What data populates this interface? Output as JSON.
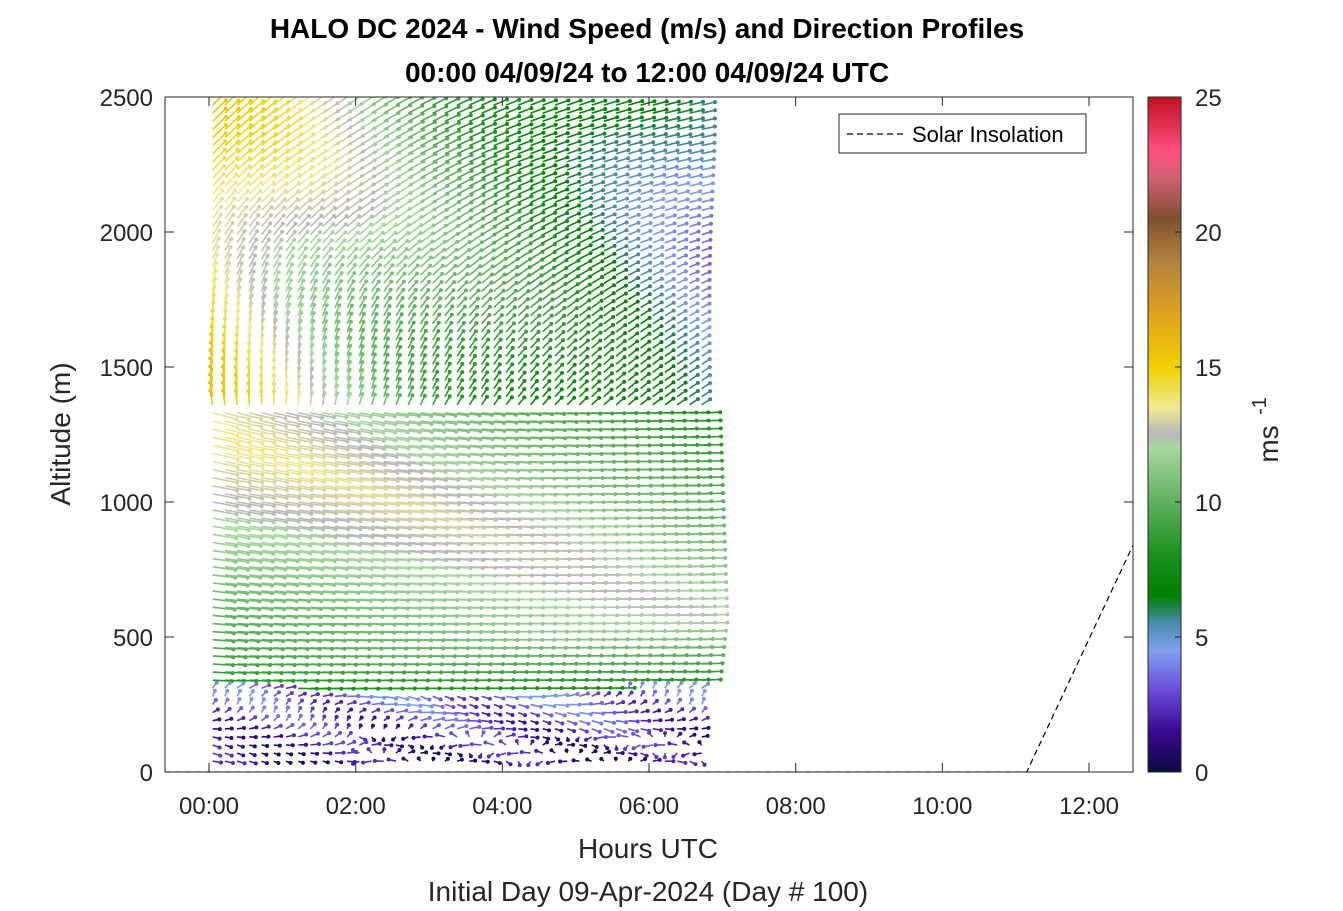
{
  "chart_data": {
    "type": "quiver",
    "title_line1": "HALO DC 2024 - Wind Speed (m/s) and Direction Profiles",
    "title_line2": "00:00 04/09/24 to 12:00 04/09/24  UTC",
    "xlabel": "Hours UTC",
    "xlabel_sub": "Initial Day 09-Apr-2024 (Day # 100)",
    "ylabel": "Altitude (m)",
    "xlim": [
      -0.6,
      12.6
    ],
    "ylim": [
      0,
      2500
    ],
    "x_ticks": [
      {
        "value": 0,
        "label": "00:00"
      },
      {
        "value": 2,
        "label": "02:00"
      },
      {
        "value": 4,
        "label": "04:00"
      },
      {
        "value": 6,
        "label": "06:00"
      },
      {
        "value": 8,
        "label": "08:00"
      },
      {
        "value": 10,
        "label": "10:00"
      },
      {
        "value": 12,
        "label": "12:00"
      }
    ],
    "y_ticks": [
      {
        "value": 0,
        "label": "0"
      },
      {
        "value": 500,
        "label": "500"
      },
      {
        "value": 1000,
        "label": "1000"
      },
      {
        "value": 1500,
        "label": "1500"
      },
      {
        "value": 2000,
        "label": "2000"
      },
      {
        "value": 2500,
        "label": "2500"
      }
    ],
    "colorbar": {
      "label": "ms",
      "label_exponent": "-1",
      "range": [
        0,
        25
      ],
      "ticks": [
        {
          "value": 0,
          "label": "0"
        },
        {
          "value": 5,
          "label": "5"
        },
        {
          "value": 10,
          "label": "10"
        },
        {
          "value": 15,
          "label": "15"
        },
        {
          "value": 20,
          "label": "20"
        },
        {
          "value": 25,
          "label": "25"
        }
      ],
      "stops": [
        {
          "v": 0,
          "color": "#0a0a40"
        },
        {
          "v": 1.5,
          "color": "#3a0a90"
        },
        {
          "v": 3,
          "color": "#6a4ad8"
        },
        {
          "v": 4.5,
          "color": "#80a0f0"
        },
        {
          "v": 5.5,
          "color": "#4a8cb0"
        },
        {
          "v": 6.5,
          "color": "#008000"
        },
        {
          "v": 8,
          "color": "#1a901a"
        },
        {
          "v": 10,
          "color": "#60b060"
        },
        {
          "v": 12,
          "color": "#a8d8a0"
        },
        {
          "v": 12.5,
          "color": "#b8b8b8"
        },
        {
          "v": 13.5,
          "color": "#f0e890"
        },
        {
          "v": 15,
          "color": "#f0d000"
        },
        {
          "v": 17,
          "color": "#e0a020"
        },
        {
          "v": 19,
          "color": "#b08040"
        },
        {
          "v": 20.5,
          "color": "#805030"
        },
        {
          "v": 22,
          "color": "#d06070"
        },
        {
          "v": 23,
          "color": "#ff5080"
        },
        {
          "v": 25,
          "color": "#c01020"
        }
      ]
    },
    "wind_field": {
      "time_start_hours": 0.05,
      "time_step_hours": 0.1667,
      "time_count": 41,
      "altitude_start_m": 40,
      "altitude_step_m": 30,
      "altitude_count": 83,
      "speed_regimes": [
        {
          "name": "upper layer",
          "altitude_min": 1300,
          "speed_early": 14,
          "speed_late": 6
        },
        {
          "name": "jet layer",
          "altitude_min": 500,
          "altitude_max": 1300,
          "speed_peak": 14
        },
        {
          "name": "boundary layer",
          "altitude_max": 300,
          "speed": 2
        }
      ]
    },
    "series": [
      {
        "name": "Solar Insolation",
        "style": "dashed",
        "color": "#000000",
        "x": [
          -0.6,
          11.15,
          12.6
        ],
        "y": [
          0,
          0,
          840
        ]
      }
    ],
    "legend_position": "top-right"
  }
}
